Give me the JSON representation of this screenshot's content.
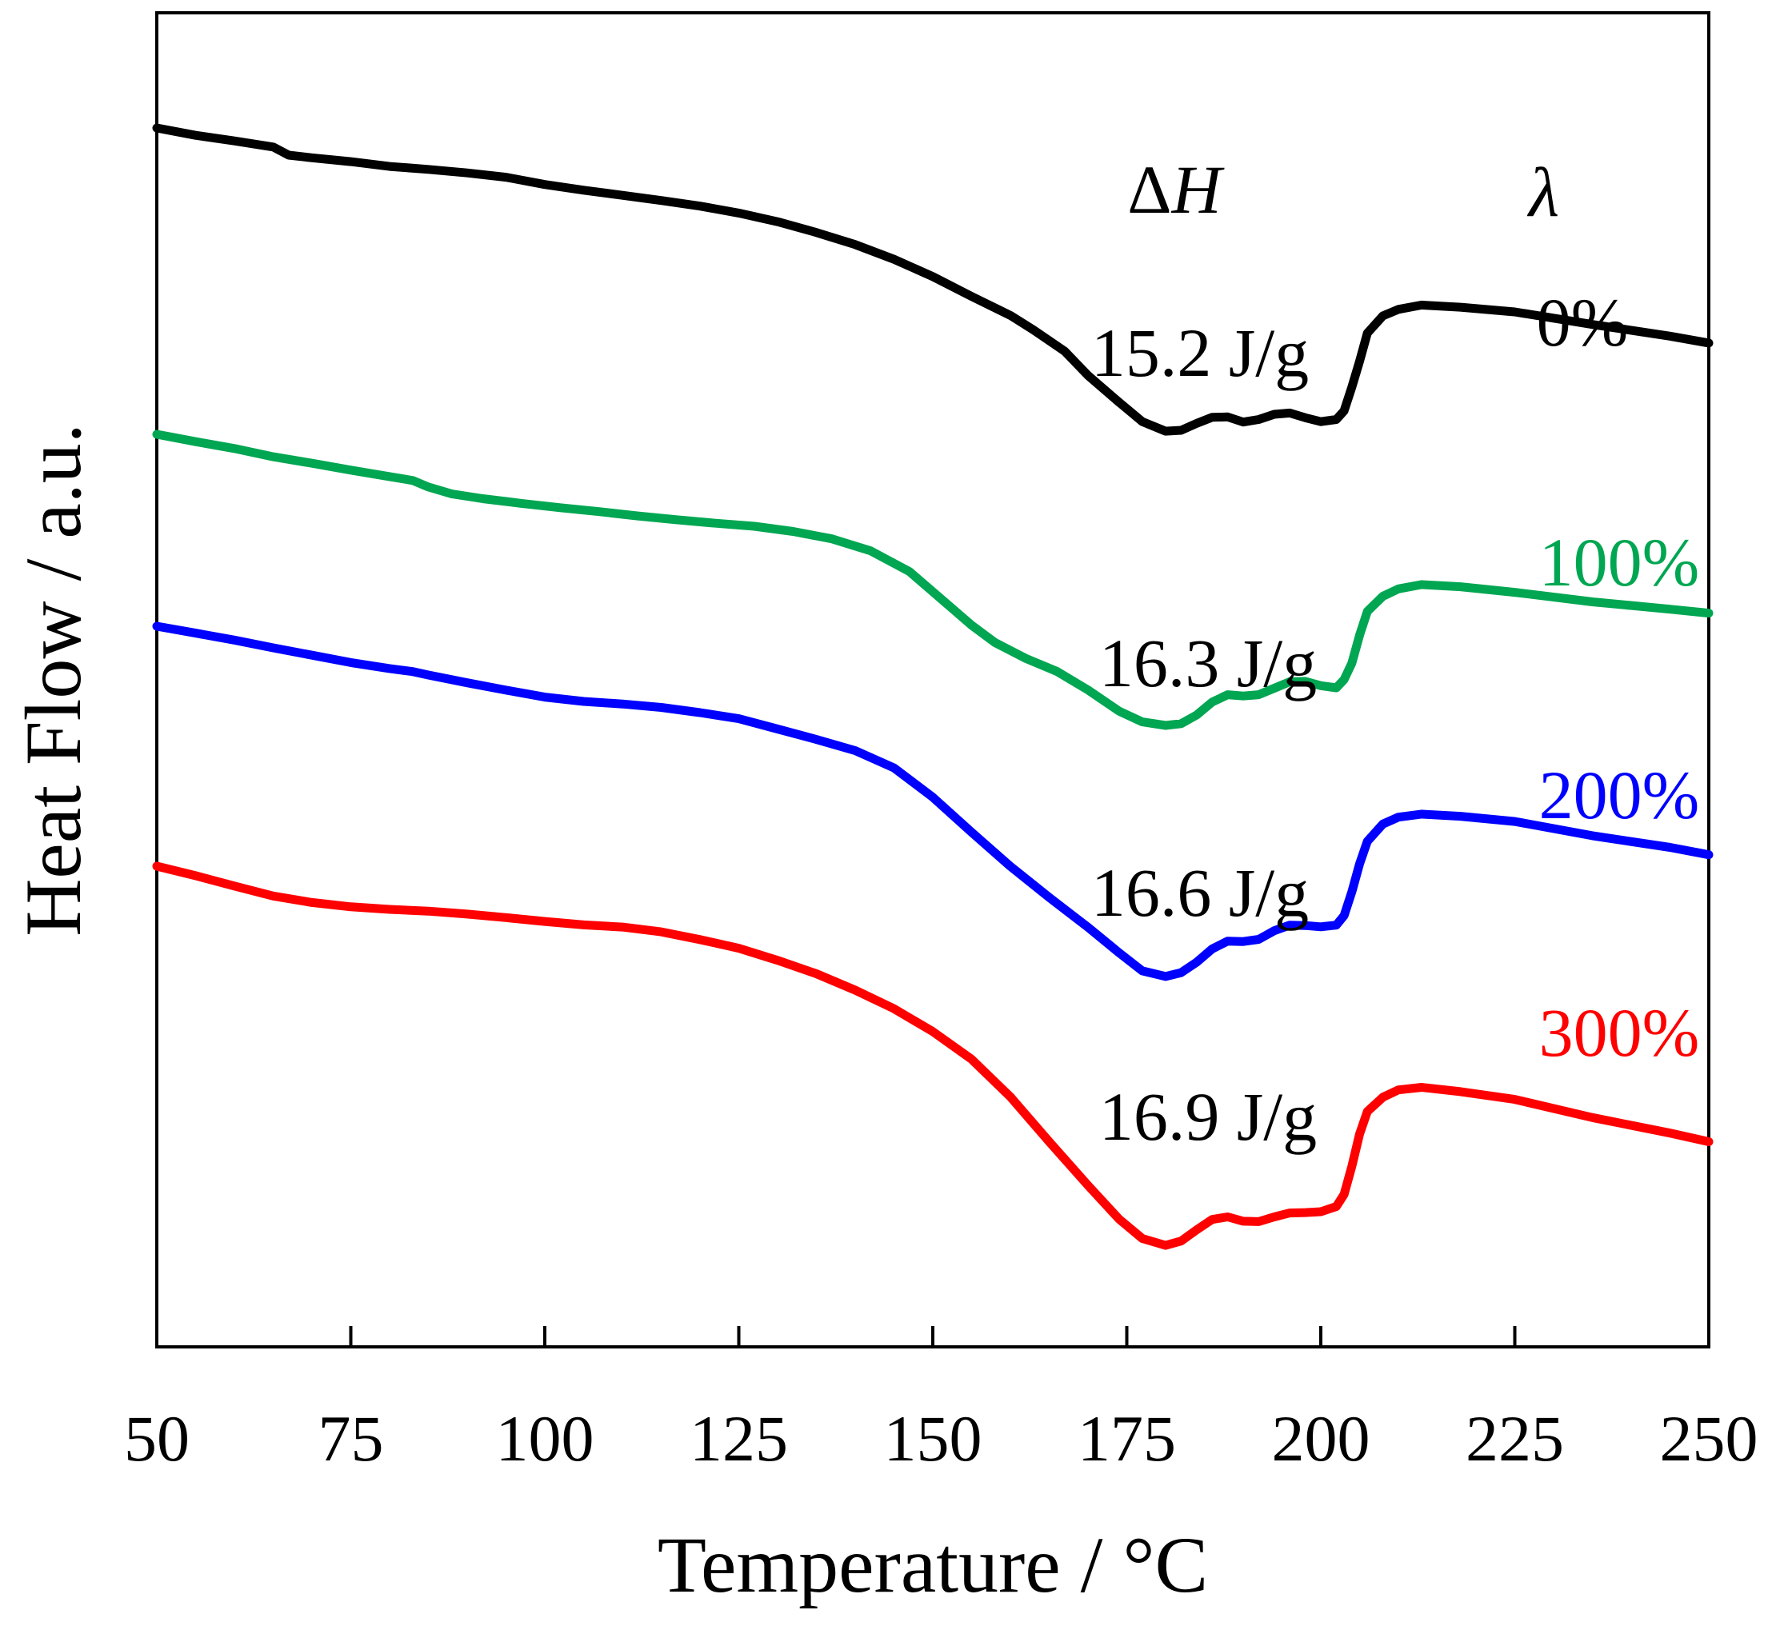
{
  "chart_data": {
    "type": "line",
    "xlabel": "Temperature / °C",
    "ylabel": "Heat Flow / a.u.",
    "xlim": [
      50,
      250
    ],
    "x_ticks": [
      50,
      75,
      100,
      125,
      150,
      175,
      200,
      225,
      250
    ],
    "y_ticks_shown": false,
    "grid": false,
    "annotation_headers": {
      "enthalpy": "ΔH",
      "lambda": "λ"
    },
    "series": [
      {
        "name": "0%",
        "color": "#000000",
        "enthalpy_label": "15.2 J/g",
        "points": [
          [
            50,
            0.0
          ],
          [
            55,
            -0.17
          ],
          [
            60,
            -0.3
          ],
          [
            65,
            -0.44
          ],
          [
            67,
            -0.63
          ],
          [
            70,
            -0.69
          ],
          [
            75,
            -0.78
          ],
          [
            80,
            -0.89
          ],
          [
            85,
            -0.96
          ],
          [
            90,
            -1.04
          ],
          [
            95,
            -1.14
          ],
          [
            100,
            -1.31
          ],
          [
            105,
            -1.44
          ],
          [
            110,
            -1.56
          ],
          [
            115,
            -1.68
          ],
          [
            120,
            -1.81
          ],
          [
            125,
            -1.97
          ],
          [
            130,
            -2.17
          ],
          [
            135,
            -2.42
          ],
          [
            140,
            -2.7
          ],
          [
            145,
            -3.04
          ],
          [
            150,
            -3.44
          ],
          [
            155,
            -3.9
          ],
          [
            160,
            -4.34
          ],
          [
            163,
            -4.68
          ],
          [
            167,
            -5.17
          ],
          [
            170,
            -5.73
          ],
          [
            174,
            -6.35
          ],
          [
            177,
            -6.8
          ],
          [
            180,
            -7.02
          ],
          [
            182,
            -7.0
          ],
          [
            184,
            -6.84
          ],
          [
            186,
            -6.7
          ],
          [
            188,
            -6.69
          ],
          [
            190,
            -6.81
          ],
          [
            192,
            -6.75
          ],
          [
            194,
            -6.63
          ],
          [
            196,
            -6.6
          ],
          [
            198,
            -6.71
          ],
          [
            200,
            -6.8
          ],
          [
            202,
            -6.75
          ],
          [
            203,
            -6.55
          ],
          [
            204,
            -6.0
          ],
          [
            205,
            -5.4
          ],
          [
            206,
            -4.75
          ],
          [
            208,
            -4.35
          ],
          [
            210,
            -4.2
          ],
          [
            213,
            -4.1
          ],
          [
            218,
            -4.15
          ],
          [
            225,
            -4.26
          ],
          [
            235,
            -4.55
          ],
          [
            245,
            -4.82
          ],
          [
            250,
            -4.98
          ]
        ]
      },
      {
        "name": "100%",
        "color": "#00a651",
        "enthalpy_label": "16.3 J/g",
        "points": [
          [
            50,
            0.0
          ],
          [
            55,
            -0.17
          ],
          [
            60,
            -0.33
          ],
          [
            65,
            -0.52
          ],
          [
            70,
            -0.67
          ],
          [
            75,
            -0.83
          ],
          [
            80,
            -0.98
          ],
          [
            83,
            -1.07
          ],
          [
            85,
            -1.22
          ],
          [
            88,
            -1.38
          ],
          [
            92,
            -1.49
          ],
          [
            97,
            -1.6
          ],
          [
            102,
            -1.7
          ],
          [
            107,
            -1.79
          ],
          [
            112,
            -1.89
          ],
          [
            117,
            -1.98
          ],
          [
            122,
            -2.06
          ],
          [
            127,
            -2.13
          ],
          [
            132,
            -2.25
          ],
          [
            137,
            -2.42
          ],
          [
            142,
            -2.7
          ],
          [
            147,
            -3.18
          ],
          [
            151,
            -3.8
          ],
          [
            155,
            -4.42
          ],
          [
            158,
            -4.82
          ],
          [
            162,
            -5.19
          ],
          [
            166,
            -5.49
          ],
          [
            170,
            -5.92
          ],
          [
            174,
            -6.41
          ],
          [
            177,
            -6.66
          ],
          [
            180,
            -6.74
          ],
          [
            182,
            -6.7
          ],
          [
            184,
            -6.5
          ],
          [
            186,
            -6.2
          ],
          [
            188,
            -6.03
          ],
          [
            190,
            -6.06
          ],
          [
            192,
            -6.03
          ],
          [
            194,
            -5.88
          ],
          [
            196,
            -5.73
          ],
          [
            198,
            -5.72
          ],
          [
            200,
            -5.82
          ],
          [
            202,
            -5.87
          ],
          [
            203,
            -5.68
          ],
          [
            204,
            -5.3
          ],
          [
            205,
            -4.65
          ],
          [
            206,
            -4.1
          ],
          [
            208,
            -3.75
          ],
          [
            210,
            -3.58
          ],
          [
            213,
            -3.48
          ],
          [
            218,
            -3.53
          ],
          [
            225,
            -3.66
          ],
          [
            235,
            -3.88
          ],
          [
            245,
            -4.05
          ],
          [
            250,
            -4.14
          ]
        ]
      },
      {
        "name": "200%",
        "color": "#0000ff",
        "enthalpy_label": "16.6 J/g",
        "points": [
          [
            50,
            0.0
          ],
          [
            55,
            -0.16
          ],
          [
            60,
            -0.32
          ],
          [
            65,
            -0.5
          ],
          [
            70,
            -0.67
          ],
          [
            75,
            -0.84
          ],
          [
            80,
            -0.98
          ],
          [
            83,
            -1.05
          ],
          [
            85,
            -1.13
          ],
          [
            90,
            -1.31
          ],
          [
            95,
            -1.48
          ],
          [
            100,
            -1.64
          ],
          [
            105,
            -1.74
          ],
          [
            110,
            -1.8
          ],
          [
            115,
            -1.88
          ],
          [
            120,
            -2.0
          ],
          [
            125,
            -2.14
          ],
          [
            130,
            -2.38
          ],
          [
            135,
            -2.62
          ],
          [
            140,
            -2.88
          ],
          [
            145,
            -3.28
          ],
          [
            150,
            -3.96
          ],
          [
            155,
            -4.77
          ],
          [
            160,
            -5.56
          ],
          [
            165,
            -6.28
          ],
          [
            170,
            -6.97
          ],
          [
            174,
            -7.56
          ],
          [
            177,
            -7.98
          ],
          [
            180,
            -8.11
          ],
          [
            182,
            -8.02
          ],
          [
            184,
            -7.78
          ],
          [
            186,
            -7.47
          ],
          [
            188,
            -7.29
          ],
          [
            190,
            -7.3
          ],
          [
            192,
            -7.25
          ],
          [
            194,
            -7.05
          ],
          [
            196,
            -6.92
          ],
          [
            198,
            -6.93
          ],
          [
            200,
            -6.96
          ],
          [
            202,
            -6.92
          ],
          [
            203,
            -6.7
          ],
          [
            204,
            -6.15
          ],
          [
            205,
            -5.5
          ],
          [
            206,
            -4.98
          ],
          [
            208,
            -4.58
          ],
          [
            210,
            -4.42
          ],
          [
            213,
            -4.35
          ],
          [
            218,
            -4.4
          ],
          [
            225,
            -4.52
          ],
          [
            235,
            -4.85
          ],
          [
            245,
            -5.12
          ],
          [
            250,
            -5.29
          ]
        ]
      },
      {
        "name": "300%",
        "color": "#ff0000",
        "enthalpy_label": "16.9 J/g",
        "points": [
          [
            50,
            0.0
          ],
          [
            55,
            -0.22
          ],
          [
            60,
            -0.46
          ],
          [
            65,
            -0.69
          ],
          [
            70,
            -0.84
          ],
          [
            75,
            -0.94
          ],
          [
            80,
            -1.0
          ],
          [
            85,
            -1.04
          ],
          [
            90,
            -1.11
          ],
          [
            95,
            -1.19
          ],
          [
            100,
            -1.28
          ],
          [
            105,
            -1.36
          ],
          [
            110,
            -1.41
          ],
          [
            115,
            -1.52
          ],
          [
            120,
            -1.7
          ],
          [
            125,
            -1.9
          ],
          [
            130,
            -2.18
          ],
          [
            135,
            -2.49
          ],
          [
            140,
            -2.87
          ],
          [
            145,
            -3.3
          ],
          [
            150,
            -3.83
          ],
          [
            155,
            -4.47
          ],
          [
            160,
            -5.34
          ],
          [
            165,
            -6.38
          ],
          [
            170,
            -7.39
          ],
          [
            174,
            -8.17
          ],
          [
            177,
            -8.62
          ],
          [
            180,
            -8.78
          ],
          [
            182,
            -8.68
          ],
          [
            184,
            -8.42
          ],
          [
            186,
            -8.18
          ],
          [
            188,
            -8.12
          ],
          [
            190,
            -8.22
          ],
          [
            192,
            -8.23
          ],
          [
            194,
            -8.12
          ],
          [
            196,
            -8.03
          ],
          [
            198,
            -8.02
          ],
          [
            200,
            -8.0
          ],
          [
            202,
            -7.88
          ],
          [
            203,
            -7.6
          ],
          [
            204,
            -6.95
          ],
          [
            205,
            -6.2
          ],
          [
            206,
            -5.68
          ],
          [
            208,
            -5.35
          ],
          [
            210,
            -5.18
          ],
          [
            213,
            -5.12
          ],
          [
            218,
            -5.22
          ],
          [
            225,
            -5.4
          ],
          [
            235,
            -5.82
          ],
          [
            245,
            -6.18
          ],
          [
            250,
            -6.38
          ]
        ]
      }
    ]
  }
}
